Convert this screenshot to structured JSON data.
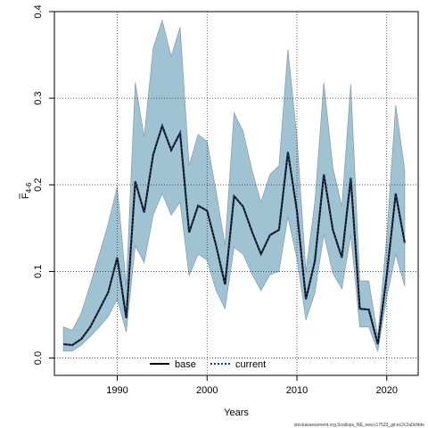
{
  "chart_data": {
    "type": "line",
    "xlabel": "Years",
    "ylabel": "F4-6",
    "ylabel_main": "F",
    "ylabel_sub": "4-6",
    "xlim": [
      1983,
      2023.5
    ],
    "ylim": [
      -0.02,
      0.4
    ],
    "x_ticks": [
      1990,
      2000,
      2010,
      2020
    ],
    "y_ticks": [
      0.0,
      0.1,
      0.2,
      0.3,
      0.4
    ],
    "y_tick_labels": [
      "0.0",
      "0.1",
      "0.2",
      "0.3",
      "0.4"
    ],
    "grid": true,
    "legend": {
      "placement": "bottom-center"
    },
    "x": [
      1984,
      1985,
      1986,
      1987,
      1988,
      1989,
      1990,
      1991,
      1992,
      1993,
      1994,
      1995,
      1996,
      1997,
      1998,
      1999,
      2000,
      2001,
      2002,
      2003,
      2004,
      2005,
      2006,
      2007,
      2008,
      2009,
      2010,
      2011,
      2012,
      2013,
      2014,
      2015,
      2016,
      2017,
      2018,
      2019,
      2020,
      2021,
      2022
    ],
    "series": [
      {
        "name": "base",
        "color": "#000000",
        "style": "solid",
        "values": [
          0.016,
          0.015,
          0.022,
          0.036,
          0.056,
          0.076,
          0.116,
          0.046,
          0.204,
          0.168,
          0.235,
          0.268,
          0.24,
          0.26,
          0.145,
          0.176,
          0.17,
          0.13,
          0.085,
          0.187,
          0.175,
          0.146,
          0.12,
          0.142,
          0.148,
          0.238,
          0.17,
          0.068,
          0.112,
          0.212,
          0.148,
          0.116,
          0.208,
          0.057,
          0.056,
          0.016,
          0.095,
          0.19,
          0.133
        ]
      },
      {
        "name": "current",
        "color": "#1a3f66",
        "style": "dotted",
        "values": [
          0.016,
          0.015,
          0.022,
          0.036,
          0.056,
          0.076,
          0.116,
          0.046,
          0.204,
          0.168,
          0.235,
          0.268,
          0.24,
          0.26,
          0.145,
          0.176,
          0.17,
          0.13,
          0.085,
          0.187,
          0.175,
          0.146,
          0.12,
          0.142,
          0.148,
          0.238,
          0.17,
          0.068,
          0.112,
          0.212,
          0.148,
          0.116,
          0.208,
          0.057,
          0.056,
          0.016,
          0.095,
          0.19,
          0.133
        ]
      }
    ],
    "band": {
      "color": "#8fb8cc",
      "lower": [
        0.008,
        0.008,
        0.015,
        0.025,
        0.036,
        0.048,
        0.068,
        0.03,
        0.13,
        0.11,
        0.165,
        0.19,
        0.165,
        0.18,
        0.095,
        0.12,
        0.113,
        0.078,
        0.057,
        0.128,
        0.12,
        0.097,
        0.078,
        0.096,
        0.1,
        0.163,
        0.115,
        0.044,
        0.075,
        0.143,
        0.098,
        0.08,
        0.142,
        0.036,
        0.036,
        0.008,
        0.07,
        0.12,
        0.083
      ],
      "upper": [
        0.036,
        0.032,
        0.052,
        0.085,
        0.12,
        0.155,
        0.198,
        0.083,
        0.318,
        0.255,
        0.358,
        0.39,
        0.348,
        0.382,
        0.222,
        0.258,
        0.25,
        0.193,
        0.13,
        0.283,
        0.262,
        0.217,
        0.18,
        0.212,
        0.222,
        0.356,
        0.255,
        0.1,
        0.18,
        0.318,
        0.22,
        0.175,
        0.316,
        0.089,
        0.089,
        0.025,
        0.14,
        0.292,
        0.217
      ]
    }
  },
  "caption": "stockassessment.org,Scallops_NE_new,r17522_git:ec2c2a0cfdde"
}
